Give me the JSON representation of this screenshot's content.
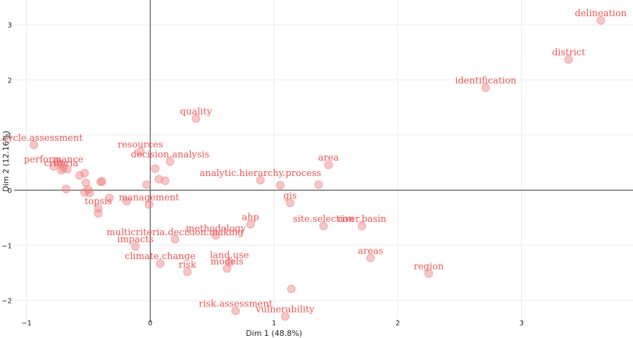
{
  "chart_data": {
    "type": "scatter",
    "title": "",
    "xlabel": "Dim 1 (48.8%)",
    "ylabel": "Dim 2 (12.16%)",
    "xlim": [
      -1.1,
      3.9
    ],
    "ylim": [
      -2.4,
      3.45
    ],
    "x_ticks": [
      -1,
      0,
      1,
      2,
      3
    ],
    "y_ticks": [
      -2,
      -1,
      0,
      1,
      2,
      3
    ],
    "x_tick_labels": [
      "−1",
      "0",
      "1",
      "2",
      "3"
    ],
    "y_tick_labels": [
      "−2",
      "−1",
      "0",
      "1",
      "2",
      "3"
    ],
    "grid": true,
    "reference_lines_at_zero": true,
    "marker_color": "#f08080",
    "label_color": "#f05050",
    "axis_line_color": "#555555",
    "points": [
      {
        "label": "delineation",
        "x": 3.64,
        "y": 3.08
      },
      {
        "label": "district",
        "x": 3.38,
        "y": 2.37
      },
      {
        "label": "identification",
        "x": 2.71,
        "y": 1.86
      },
      {
        "label": "quality",
        "x": 0.37,
        "y": 1.3
      },
      {
        "label": "life.cycle.assessment",
        "x": -0.94,
        "y": 0.82
      },
      {
        "label": "resources",
        "x": -0.08,
        "y": 0.7
      },
      {
        "label": "decision.analysis",
        "x": 0.16,
        "y": 0.52
      },
      {
        "label": "area",
        "x": 1.44,
        "y": 0.46
      },
      {
        "label": "performance",
        "x": -0.78,
        "y": 0.43
      },
      {
        "label": "criteria",
        "x": -0.72,
        "y": 0.36
      },
      {
        "label": "analytic.hierarchy.process",
        "x": 0.89,
        "y": 0.18
      },
      {
        "label": "management",
        "x": -0.01,
        "y": -0.26
      },
      {
        "label": "gis",
        "x": 1.13,
        "y": -0.23
      },
      {
        "label": "topsis",
        "x": -0.42,
        "y": -0.33
      },
      {
        "label": "ahp",
        "x": 0.81,
        "y": -0.62
      },
      {
        "label": "site.selection",
        "x": 1.4,
        "y": -0.65
      },
      {
        "label": "river.basin",
        "x": 1.71,
        "y": -0.65
      },
      {
        "label": "methodology",
        "x": 0.53,
        "y": -0.82
      },
      {
        "label": "multicriteria.decision.making",
        "x": 0.2,
        "y": -0.89
      },
      {
        "label": "impacts",
        "x": -0.12,
        "y": -1.02
      },
      {
        "label": "areas",
        "x": 1.78,
        "y": -1.23
      },
      {
        "label": "land.use",
        "x": 0.64,
        "y": -1.31
      },
      {
        "label": "climate.change",
        "x": 0.08,
        "y": -1.33
      },
      {
        "label": "models",
        "x": 0.62,
        "y": -1.42
      },
      {
        "label": "risk",
        "x": 0.3,
        "y": -1.48
      },
      {
        "label": "region",
        "x": 2.25,
        "y": -1.51
      },
      {
        "label": "risk.assessment",
        "x": 0.69,
        "y": -2.19
      },
      {
        "label": "vulnerability",
        "x": 1.09,
        "y": -2.29
      },
      {
        "label": "",
        "x": -0.75,
        "y": 0.52
      },
      {
        "label": "",
        "x": -0.72,
        "y": 0.47
      },
      {
        "label": "",
        "x": -0.7,
        "y": 0.4
      },
      {
        "label": "",
        "x": -0.67,
        "y": 0.38
      },
      {
        "label": "",
        "x": -0.57,
        "y": 0.27
      },
      {
        "label": "",
        "x": -0.53,
        "y": 0.31
      },
      {
        "label": "",
        "x": -0.52,
        "y": 0.13
      },
      {
        "label": "",
        "x": -0.68,
        "y": 0.02
      },
      {
        "label": "",
        "x": -0.5,
        "y": 0.01
      },
      {
        "label": "",
        "x": -0.53,
        "y": -0.04
      },
      {
        "label": "",
        "x": -0.49,
        "y": -0.05
      },
      {
        "label": "",
        "x": -0.39,
        "y": 0.16
      },
      {
        "label": "",
        "x": -0.4,
        "y": 0.15
      },
      {
        "label": "",
        "x": -0.03,
        "y": 0.1
      },
      {
        "label": "",
        "x": 0.04,
        "y": 0.39
      },
      {
        "label": "",
        "x": 0.07,
        "y": 0.2
      },
      {
        "label": "",
        "x": 0.12,
        "y": 0.17
      },
      {
        "label": "",
        "x": -0.33,
        "y": -0.14
      },
      {
        "label": "",
        "x": -0.42,
        "y": -0.42
      },
      {
        "label": "",
        "x": -0.19,
        "y": -0.2
      },
      {
        "label": "",
        "x": 1.05,
        "y": 0.09
      },
      {
        "label": "",
        "x": 1.36,
        "y": 0.1
      },
      {
        "label": "",
        "x": 1.14,
        "y": -1.79
      }
    ]
  }
}
